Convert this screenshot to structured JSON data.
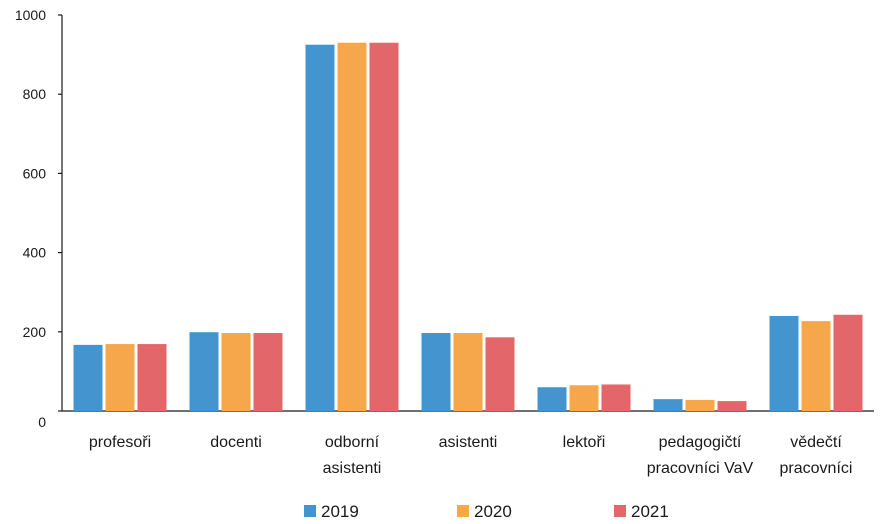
{
  "chart_data": {
    "type": "bar",
    "categories": [
      [
        "profesoři"
      ],
      [
        "docenti"
      ],
      [
        "odborní",
        "asistenti"
      ],
      [
        "asistenti"
      ],
      [
        "lektoři"
      ],
      [
        "pedagogičtí",
        "pracovníci VaV"
      ],
      [
        "vědečtí",
        "pracovníci"
      ]
    ],
    "series": [
      {
        "name": "2019",
        "color": "#4495cf",
        "values": [
          167,
          199,
          925,
          197,
          60,
          30,
          240
        ]
      },
      {
        "name": "2020",
        "color": "#f6a74c",
        "values": [
          169,
          197,
          930,
          197,
          65,
          28,
          227
        ]
      },
      {
        "name": "2021",
        "color": "#e3666a",
        "values": [
          169,
          197,
          930,
          186,
          67,
          25,
          243
        ]
      }
    ],
    "yticks": [
      0,
      200,
      400,
      600,
      800,
      1000
    ],
    "ylim": [
      0,
      1000
    ],
    "grid": false,
    "legend": "bottom"
  }
}
